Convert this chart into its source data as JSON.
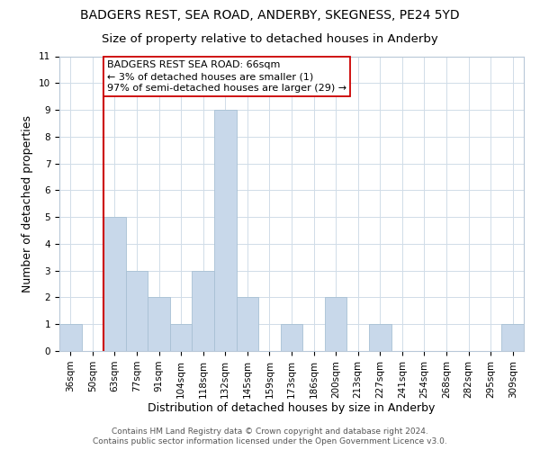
{
  "title": "BADGERS REST, SEA ROAD, ANDERBY, SKEGNESS, PE24 5YD",
  "subtitle": "Size of property relative to detached houses in Anderby",
  "xlabel": "Distribution of detached houses by size in Anderby",
  "ylabel": "Number of detached properties",
  "bar_labels": [
    "36sqm",
    "50sqm",
    "63sqm",
    "77sqm",
    "91sqm",
    "104sqm",
    "118sqm",
    "132sqm",
    "145sqm",
    "159sqm",
    "173sqm",
    "186sqm",
    "200sqm",
    "213sqm",
    "227sqm",
    "241sqm",
    "254sqm",
    "268sqm",
    "282sqm",
    "295sqm",
    "309sqm"
  ],
  "bar_values": [
    1,
    0,
    5,
    3,
    2,
    1,
    3,
    9,
    2,
    0,
    1,
    0,
    2,
    0,
    1,
    0,
    0,
    0,
    0,
    0,
    1
  ],
  "bar_color": "#c8d8ea",
  "bar_edge_color": "#a8c0d4",
  "ylim": [
    0,
    11
  ],
  "yticks": [
    0,
    1,
    2,
    3,
    4,
    5,
    6,
    7,
    8,
    9,
    10,
    11
  ],
  "property_line_idx": 2,
  "property_line_color": "#cc0000",
  "annotation_line1": "BADGERS REST SEA ROAD: 66sqm",
  "annotation_line2": "← 3% of detached houses are smaller (1)",
  "annotation_line3": "97% of semi-detached houses are larger (29) →",
  "annotation_box_color": "#ffffff",
  "annotation_box_edge_color": "#cc0000",
  "footer_line1": "Contains HM Land Registry data © Crown copyright and database right 2024.",
  "footer_line2": "Contains public sector information licensed under the Open Government Licence v3.0.",
  "background_color": "#ffffff",
  "grid_color": "#d0dce8",
  "title_fontsize": 10,
  "subtitle_fontsize": 9.5,
  "axis_label_fontsize": 9,
  "tick_fontsize": 7.5,
  "annotation_fontsize": 8,
  "footer_fontsize": 6.5
}
